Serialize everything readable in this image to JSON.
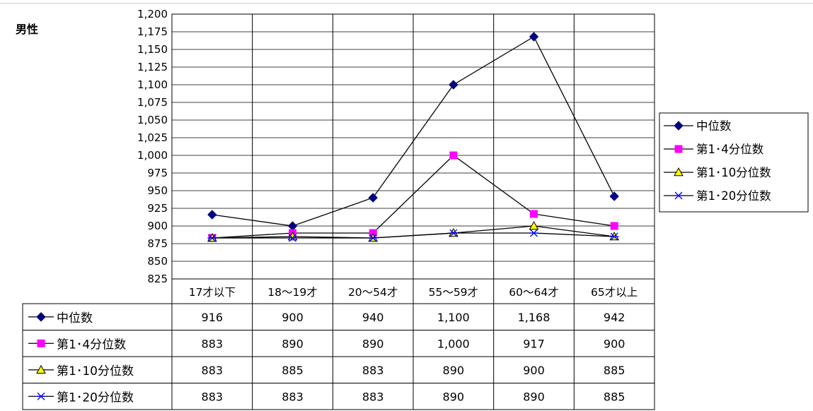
{
  "sheet_title": "男性",
  "chart_data": {
    "type": "line",
    "title": "男性",
    "categories": [
      "17才以下",
      "18～19才",
      "20～54才",
      "55～59才",
      "60～64才",
      "65才以上"
    ],
    "ylim": [
      825,
      1200
    ],
    "y_step": 25,
    "y_ticks": [
      "825",
      "850",
      "875",
      "900",
      "925",
      "950",
      "975",
      "1,000",
      "1,025",
      "1,050",
      "1,075",
      "1,100",
      "1,125",
      "1,150",
      "1,175",
      "1,200"
    ],
    "grid": true,
    "legend_position": "right",
    "series": [
      {
        "name": "中位数",
        "color": "#000080",
        "marker": "diamond",
        "values": [
          916,
          900,
          940,
          1100,
          1168,
          942
        ],
        "labels": [
          "916",
          "900",
          "940",
          "1,100",
          "1,168",
          "942"
        ]
      },
      {
        "name": "第1･4分位数",
        "color": "#ff00ff",
        "marker": "square",
        "values": [
          883,
          890,
          890,
          1000,
          917,
          900
        ],
        "labels": [
          "883",
          "890",
          "890",
          "1,000",
          "917",
          "900"
        ]
      },
      {
        "name": "第1･10分位数",
        "color": "#ffff00",
        "marker": "triangle",
        "values": [
          883,
          885,
          883,
          890,
          900,
          885
        ],
        "labels": [
          "883",
          "885",
          "883",
          "890",
          "900",
          "885"
        ]
      },
      {
        "name": "第1･20分位数",
        "color": "#0000ff",
        "marker": "x",
        "values": [
          883,
          883,
          883,
          890,
          890,
          885
        ],
        "labels": [
          "883",
          "883",
          "883",
          "890",
          "890",
          "885"
        ]
      }
    ]
  }
}
